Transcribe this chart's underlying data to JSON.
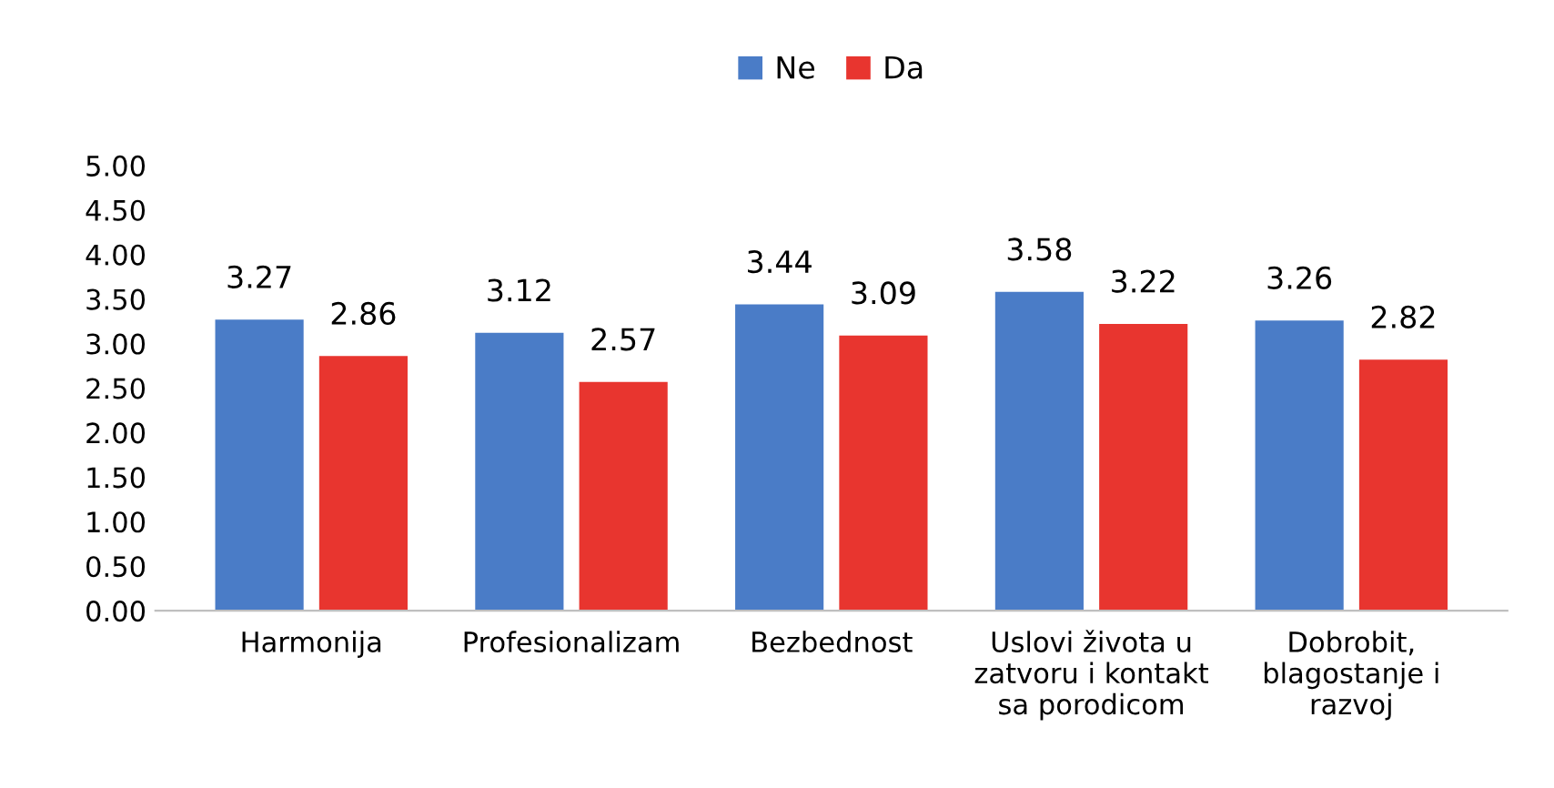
{
  "chart_data": {
    "type": "bar",
    "categories": [
      "Harmonija",
      "Profesionalizam",
      "Bezbednost",
      "Uslovi života u\nzatvoru i kontakt\nsa porodicom",
      "Dobrobit,\nblagostanje i\nrazvoj"
    ],
    "series": [
      {
        "name": "Ne",
        "color": "#4a7cc7",
        "values": [
          3.27,
          3.12,
          3.44,
          3.58,
          3.26
        ]
      },
      {
        "name": "Da",
        "color": "#e8352f",
        "values": [
          2.86,
          2.57,
          3.09,
          3.22,
          2.82
        ]
      }
    ],
    "ylim": [
      0,
      5
    ],
    "yticks": [
      {
        "value": 0,
        "label": "0.00"
      },
      {
        "value": 0.5,
        "label": "0.50"
      },
      {
        "value": 1,
        "label": "1.00"
      },
      {
        "value": 1.5,
        "label": "1.50"
      },
      {
        "value": 2,
        "label": "2.00"
      },
      {
        "value": 2.5,
        "label": "2.50"
      },
      {
        "value": 3,
        "label": "3.00"
      },
      {
        "value": 3.5,
        "label": "3.50"
      },
      {
        "value": 4,
        "label": "4.00"
      },
      {
        "value": 4.5,
        "label": "4.50"
      },
      {
        "value": 5,
        "label": "5.00"
      }
    ],
    "data_labels": true,
    "grid": false,
    "legend": "top"
  }
}
